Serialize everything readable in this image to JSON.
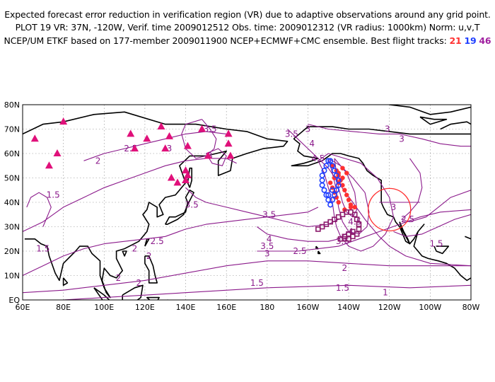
{
  "header": {
    "line1": "Expected forecast error reduction in verification region (VR) due to adaptive observations around any grid point.",
    "line2": "PLOT 19 VR: 37N, -120W, Verif. time 2009012512 Obs. time: 2009012312 (VR radius: 1000km) Norm: u,v,T",
    "line3": "NCEP/UM ETKF based on 177-member 2009011900 NCEP+ECMWF+CMC ensemble. Best flight tracks:",
    "tracks": [
      "21",
      "19",
      "46"
    ]
  },
  "axes": {
    "lat_labels": [
      "80N",
      "70N",
      "60N",
      "50N",
      "40N",
      "30N",
      "20N",
      "10N",
      "EQ"
    ],
    "lon_labels": [
      "60E",
      "80E",
      "100E",
      "120E",
      "140E",
      "160E",
      "180",
      "160W",
      "140W",
      "120W",
      "100W",
      "80W"
    ]
  },
  "contour_labels": [
    {
      "text": "3",
      "lon": -160,
      "lat": 70
    },
    {
      "text": "3",
      "lon": -121,
      "lat": 70
    },
    {
      "text": "3.5",
      "lon": -168,
      "lat": 68
    },
    {
      "text": "4",
      "lon": -158,
      "lat": 64
    },
    {
      "text": "4.5",
      "lon": -155,
      "lat": 58
    },
    {
      "text": "3",
      "lon": -114,
      "lat": 66
    },
    {
      "text": "3",
      "lon": -118,
      "lat": 38
    },
    {
      "text": "3.5",
      "lon": 152,
      "lat": 70
    },
    {
      "text": "3",
      "lon": 132,
      "lat": 62
    },
    {
      "text": "2.5",
      "lon": 113,
      "lat": 62
    },
    {
      "text": "2",
      "lon": 97,
      "lat": 57
    },
    {
      "text": "1.5",
      "lon": 75,
      "lat": 43
    },
    {
      "text": "3",
      "lon": 152,
      "lat": 59
    },
    {
      "text": "3.5",
      "lon": 143,
      "lat": 39
    },
    {
      "text": "3.5",
      "lon": -179,
      "lat": 35
    },
    {
      "text": "4",
      "lon": -179,
      "lat": 25
    },
    {
      "text": "3.5",
      "lon": -180,
      "lat": 22
    },
    {
      "text": "3",
      "lon": -180,
      "lat": 19
    },
    {
      "text": "2.5",
      "lon": -164,
      "lat": 20
    },
    {
      "text": "2.5",
      "lon": 126,
      "lat": 24
    },
    {
      "text": "2",
      "lon": 115,
      "lat": 21
    },
    {
      "text": "1.5",
      "lon": 70,
      "lat": 21
    },
    {
      "text": "2",
      "lon": 122,
      "lat": 18
    },
    {
      "text": "2",
      "lon": 107,
      "lat": 9
    },
    {
      "text": "2",
      "lon": 117,
      "lat": 7
    },
    {
      "text": "1.5",
      "lon": -185,
      "lat": 7
    },
    {
      "text": "2",
      "lon": -142,
      "lat": 13
    },
    {
      "text": "1.5",
      "lon": -143,
      "lat": 5
    },
    {
      "text": "1",
      "lon": -122,
      "lat": 3
    },
    {
      "text": "2.5",
      "lon": -111,
      "lat": 33
    },
    {
      "text": "1.5",
      "lon": -97,
      "lat": 23
    },
    {
      "text": "3.5",
      "lon": -143,
      "lat": 24
    },
    {
      "text": "4",
      "lon": -139,
      "lat": 28
    },
    {
      "text": "4.5",
      "lon": -137,
      "lat": 32
    }
  ],
  "markers": {
    "triangles": [
      [
        66,
        66
      ],
      [
        73,
        55
      ],
      [
        77,
        60
      ],
      [
        80,
        73
      ],
      [
        113,
        68
      ],
      [
        115,
        62
      ],
      [
        121,
        66
      ],
      [
        128,
        71
      ],
      [
        130,
        62
      ],
      [
        132,
        67
      ],
      [
        141,
        63
      ],
      [
        148,
        70
      ],
      [
        151,
        59
      ],
      [
        161,
        68
      ],
      [
        161,
        64
      ],
      [
        162,
        59
      ],
      [
        133,
        50
      ],
      [
        136,
        48
      ],
      [
        141,
        51
      ],
      [
        140,
        49
      ],
      [
        140,
        53
      ]
    ],
    "track21": [
      [
        -148,
        55
      ],
      [
        -146,
        53
      ],
      [
        -145,
        51
      ],
      [
        -144,
        49
      ],
      [
        -143,
        47
      ],
      [
        -142,
        45
      ],
      [
        -141,
        43
      ],
      [
        -140,
        41
      ],
      [
        -139,
        39
      ],
      [
        -137,
        38
      ],
      [
        -139,
        38
      ],
      [
        -142,
        37
      ],
      [
        -145,
        40
      ],
      [
        -146,
        42
      ],
      [
        -147,
        44
      ],
      [
        -148,
        46
      ],
      [
        -149,
        48
      ],
      [
        -147,
        50
      ],
      [
        -145,
        52
      ],
      [
        -143,
        54
      ],
      [
        -141,
        52
      ],
      [
        -143,
        50
      ],
      [
        -145,
        48
      ],
      [
        -147,
        50
      ]
    ],
    "track19": [
      [
        -150,
        57
      ],
      [
        -151,
        55
      ],
      [
        -152,
        53
      ],
      [
        -153,
        51
      ],
      [
        -153,
        49
      ],
      [
        -153,
        47
      ],
      [
        -152,
        45
      ],
      [
        -151,
        43
      ],
      [
        -150,
        41
      ],
      [
        -149,
        39
      ],
      [
        -148,
        41
      ],
      [
        -147,
        43
      ],
      [
        -146,
        45
      ],
      [
        -145,
        47
      ],
      [
        -145,
        49
      ],
      [
        -146,
        51
      ],
      [
        -147,
        53
      ],
      [
        -148,
        55
      ],
      [
        -149,
        57
      ],
      [
        -148,
        45
      ],
      [
        -150,
        43
      ]
    ],
    "track46": [
      [
        -155,
        29
      ],
      [
        -153,
        30
      ],
      [
        -151,
        31
      ],
      [
        -149,
        32
      ],
      [
        -147,
        33
      ],
      [
        -145,
        34
      ],
      [
        -143,
        35
      ],
      [
        -141,
        36
      ],
      [
        -139,
        36
      ],
      [
        -137,
        35
      ],
      [
        -136,
        33
      ],
      [
        -135,
        31
      ],
      [
        -135,
        29
      ],
      [
        -136,
        27
      ],
      [
        -138,
        26
      ],
      [
        -140,
        25
      ],
      [
        -142,
        25
      ],
      [
        -144,
        25
      ],
      [
        -142,
        26
      ],
      [
        -140,
        27
      ],
      [
        -138,
        28
      ]
    ]
  },
  "verification_region": {
    "lat": 37,
    "lon": -120,
    "radius_label": "1000km"
  },
  "colors": {
    "contour": "#8b1a8b",
    "triangle": "#e0107a",
    "track21": "#ff3030",
    "track19": "#2040ff",
    "track46": "#8b1a6b",
    "vr_circle": "#ff3030",
    "grid": "#888888",
    "coast": "#000000"
  }
}
